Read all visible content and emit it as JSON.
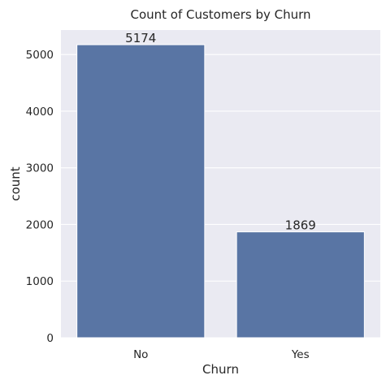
{
  "chart_data": {
    "type": "bar",
    "title": "Count of Customers by Churn",
    "xlabel": "Churn",
    "ylabel": "count",
    "categories": [
      "No",
      "Yes"
    ],
    "values": [
      5174,
      1869
    ],
    "data_labels": [
      "5174",
      "1869"
    ],
    "ylim": [
      0,
      5433
    ],
    "yticks": [
      0,
      1000,
      2000,
      3000,
      4000,
      5000
    ],
    "ytick_labels": [
      "0",
      "1000",
      "2000",
      "3000",
      "4000",
      "5000"
    ],
    "grid": true,
    "legend": "none",
    "colors": {
      "bar": "#5975a4",
      "background": "#eaeaf2",
      "grid": "#ffffff"
    }
  }
}
